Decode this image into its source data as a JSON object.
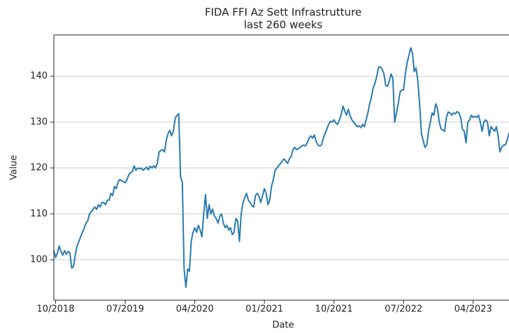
{
  "chart_data": {
    "type": "line",
    "title": "FIDA FFI Az Sett Infrastrutture",
    "subtitle": "last 260 weeks",
    "xlabel": "Date",
    "ylabel": "Value",
    "color": "#2a7ab0",
    "grid": true,
    "xlim": [
      0,
      259
    ],
    "xticks": [
      {
        "value": 1,
        "label": "10/2018"
      },
      {
        "value": 40,
        "label": "07/2019"
      },
      {
        "value": 79,
        "label": "04/2020"
      },
      {
        "value": 118,
        "label": "01/2021"
      },
      {
        "value": 157,
        "label": "10/2021"
      },
      {
        "value": 196,
        "label": "07/2022"
      },
      {
        "value": 235,
        "label": "04/2023"
      }
    ],
    "ylim": [
      91.2,
      149
    ],
    "yticks": [
      100,
      110,
      120,
      130,
      140
    ],
    "values": [
      102,
      100.5,
      101.5,
      103,
      101.8,
      101,
      102,
      101.2,
      101.8,
      101.5,
      98.2,
      98.5,
      101,
      103,
      104,
      105,
      106,
      106.8,
      108,
      108.5,
      110,
      110.5,
      111,
      111.5,
      111,
      112,
      111.5,
      112.5,
      112.5,
      112,
      113,
      113,
      114.5,
      114,
      116,
      115.5,
      117,
      117.5,
      117.2,
      117,
      116.8,
      117.5,
      118.5,
      119,
      119.2,
      120.5,
      119.5,
      120,
      119.8,
      120,
      119.5,
      119.8,
      120.2,
      119.6,
      120.4,
      120,
      120.5,
      120,
      121,
      123.5,
      123.8,
      124,
      123.5,
      126,
      127.5,
      128.2,
      127,
      128,
      130.8,
      131.5,
      131.8,
      118,
      117,
      98,
      94,
      98,
      97.5,
      104,
      106,
      107,
      106,
      107.5,
      106.5,
      105,
      110,
      114.2,
      109,
      112,
      110,
      111,
      109.5,
      109,
      108,
      109.5,
      110,
      108,
      107,
      107.5,
      106.5,
      107,
      105.5,
      106,
      109,
      108.5,
      104,
      110,
      112.5,
      113.5,
      114.5,
      113,
      112.5,
      111.8,
      111.5,
      114,
      114.5,
      113.8,
      112.5,
      114,
      115.5,
      114.5,
      112,
      113,
      116,
      117.5,
      119.5,
      120,
      120.5,
      121,
      121.5,
      122,
      121.5,
      121,
      122,
      122.5,
      124,
      124.5,
      124,
      124.2,
      124.5,
      124.8,
      125,
      124.8,
      125.5,
      126.5,
      127,
      126.5,
      127.2,
      125.8,
      125,
      124.8,
      125,
      126.5,
      127.5,
      128.5,
      129.5,
      130.2,
      130,
      130.5,
      129.8,
      129.5,
      130.5,
      131.5,
      133.5,
      132.5,
      131.5,
      132.8,
      131.5,
      130.5,
      130,
      129.5,
      129,
      129.2,
      128.8,
      129.5,
      129,
      130.5,
      132,
      134,
      135.5,
      137.5,
      138.5,
      140,
      142,
      142,
      141.5,
      140.5,
      138,
      137.8,
      139,
      140.5,
      139.5,
      130,
      132,
      134,
      136.5,
      137,
      137,
      140.5,
      143,
      144.5,
      146.2,
      145,
      141,
      141.8,
      139,
      134,
      127.5,
      126,
      124.5,
      125,
      128,
      130,
      132,
      131.5,
      134,
      133,
      130,
      128.5,
      128.3,
      128,
      131,
      132.2,
      132,
      131.5,
      132,
      131.8,
      132.3,
      132,
      131,
      128.5,
      128,
      125.5,
      130,
      130.5,
      131.5,
      131,
      131.3,
      131,
      131.5,
      130,
      128,
      130,
      130.5,
      130,
      127,
      129,
      128.5,
      128,
      129,
      127,
      123.5,
      124.5,
      125,
      125,
      126,
      127.5,
      128,
      127.8,
      128.5,
      128
    ]
  }
}
